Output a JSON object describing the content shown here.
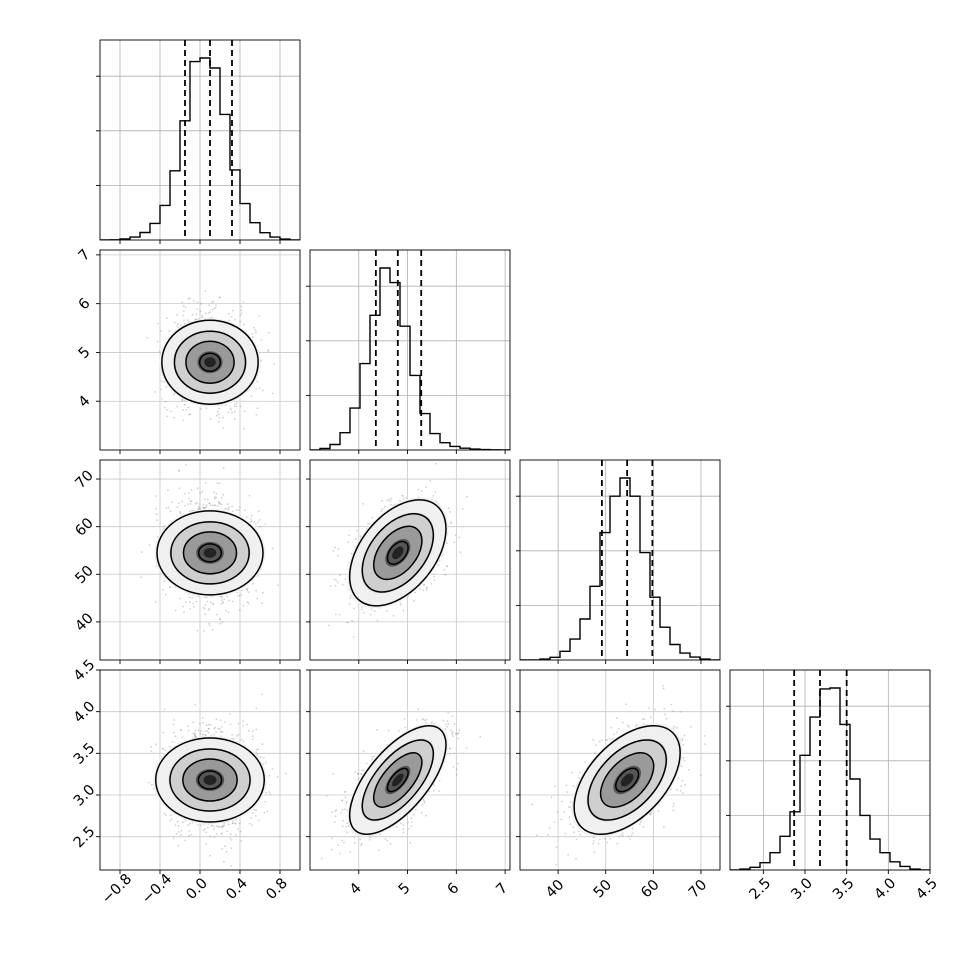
{
  "chart_data": {
    "type": "corner",
    "parameters": 4,
    "grid": true,
    "quantile_lines": "dashed",
    "histogram_style": "step",
    "scatter_color": "#808080",
    "contour_color": "#000000",
    "density_cmap": "greys",
    "ticks": {
      "p0": [
        -0.8,
        -0.4,
        0.0,
        0.4,
        0.8
      ],
      "p1": [
        4,
        5,
        6,
        7
      ],
      "p2": [
        40,
        50,
        60,
        70
      ],
      "p3": [
        2.5,
        3.0,
        3.5,
        4.0,
        4.5
      ]
    },
    "tick_labels": {
      "p0": [
        "−0.8",
        "−0.4",
        "0.0",
        "0.4",
        "0.8"
      ],
      "p1": [
        "4",
        "5",
        "6",
        "7"
      ],
      "p2": [
        "40",
        "50",
        "60",
        "70"
      ],
      "p3": [
        "2.5",
        "3.0",
        "3.5",
        "4.0",
        "4.5"
      ]
    },
    "ranges": {
      "p0": [
        -1.0,
        1.0
      ],
      "p1": [
        3.0,
        7.1
      ],
      "p2": [
        32,
        74
      ],
      "p3": [
        2.1,
        4.5
      ]
    },
    "means": [
      0.1,
      4.8,
      54.5,
      3.18
    ],
    "stds": [
      0.2,
      0.47,
      5.3,
      0.31
    ],
    "correlations": {
      "p0_p1": 0.0,
      "p0_p2": 0.0,
      "p0_p3": 0.0,
      "p1_p2": 0.45,
      "p1_p3": 0.65,
      "p2_p3": 0.5
    },
    "quantiles": {
      "p0": [
        -0.15,
        0.1,
        0.32
      ],
      "p1": [
        4.35,
        4.8,
        5.28
      ],
      "p2": [
        49.2,
        54.5,
        59.8
      ],
      "p3": [
        2.87,
        3.18,
        3.5
      ]
    },
    "histograms": {
      "p0": {
        "bin_edges": [
          -1.0,
          -0.9,
          -0.8,
          -0.7,
          -0.6,
          -0.5,
          -0.4,
          -0.3,
          -0.2,
          -0.1,
          0.0,
          0.1,
          0.2,
          0.3,
          0.4,
          0.5,
          0.6,
          0.7,
          0.8,
          0.9,
          1.0
        ],
        "counts": [
          0,
          1,
          6,
          16,
          41,
          91,
          190,
          380,
          655,
          980,
          1000,
          945,
          690,
          385,
          200,
          95,
          40,
          16,
          5,
          0
        ]
      },
      "p1": {
        "bin_edges": [
          3.0,
          3.205,
          3.41,
          3.615,
          3.82,
          4.025,
          4.23,
          4.435,
          4.64,
          4.845,
          5.05,
          5.255,
          5.46,
          5.665,
          5.87,
          6.075,
          6.28,
          6.485,
          6.69,
          6.895,
          7.1
        ],
        "counts": [
          0,
          8,
          30,
          95,
          230,
          475,
          740,
          1000,
          920,
          680,
          410,
          200,
          90,
          40,
          20,
          10,
          5,
          2,
          1,
          0
        ]
      },
      "p2": {
        "bin_edges": [
          32,
          34.1,
          36.2,
          38.3,
          40.4,
          42.5,
          44.6,
          46.7,
          48.8,
          50.9,
          53.0,
          55.1,
          57.2,
          59.3,
          61.4,
          63.5,
          65.6,
          67.7,
          69.8,
          71.9,
          74
        ],
        "counts": [
          0,
          0,
          5,
          15,
          48,
          115,
          225,
          405,
          700,
          900,
          1000,
          900,
          590,
          345,
          180,
          85,
          38,
          16,
          5,
          0
        ]
      },
      "p3": {
        "bin_edges": [
          2.1,
          2.22,
          2.34,
          2.46,
          2.58,
          2.7,
          2.82,
          2.94,
          3.06,
          3.18,
          3.3,
          3.42,
          3.54,
          3.66,
          3.78,
          3.9,
          4.02,
          4.14,
          4.26,
          4.38,
          4.5
        ],
        "counts": [
          0,
          5,
          15,
          40,
          95,
          185,
          320,
          630,
          840,
          995,
          1000,
          800,
          500,
          300,
          170,
          95,
          45,
          20,
          5,
          0
        ]
      }
    }
  }
}
